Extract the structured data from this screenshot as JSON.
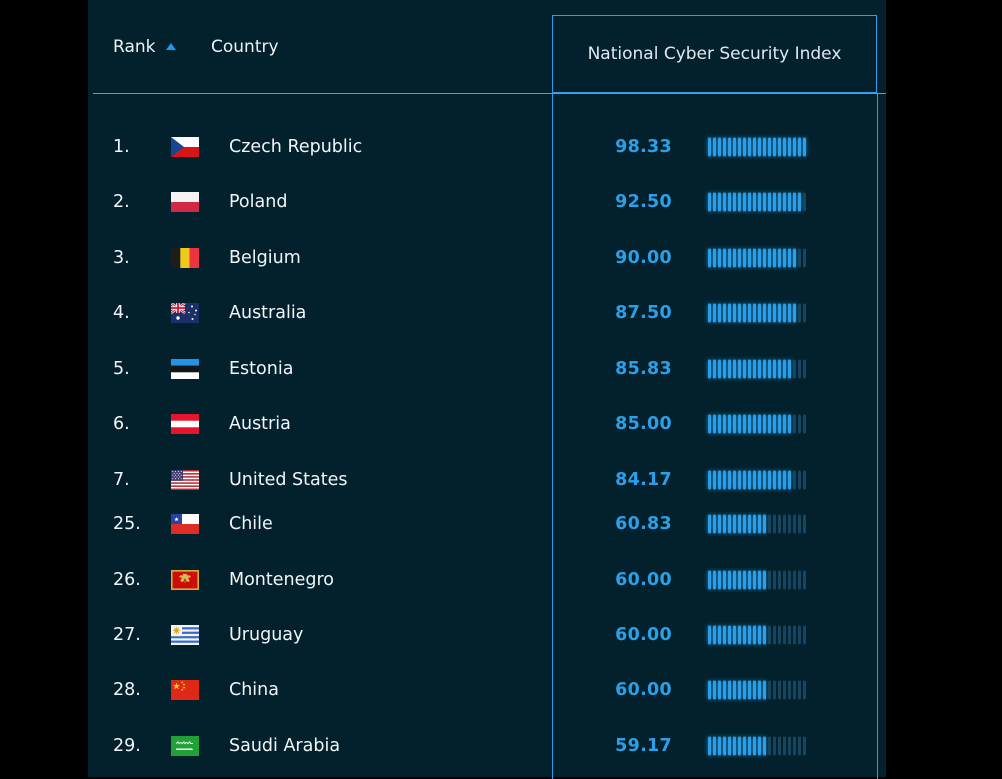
{
  "header": {
    "rank_label": "Rank",
    "country_label": "Country",
    "index_label": "National Cyber Security Index",
    "sort": {
      "column": "Rank",
      "direction": "ascending"
    }
  },
  "colors": {
    "page_bg": "#000000",
    "table_bg": "#03212c",
    "accent_blue": "#2b9fe8",
    "tick_dim": "#15465f",
    "header_line": "#4aa3d2",
    "column_border": "#2e9ce6",
    "text_primary": "#f1f5f7",
    "sort_arrow": "#2196f3"
  },
  "table": {
    "bar": {
      "total_ticks": 20,
      "max_value": 100
    },
    "rows": [
      {
        "rank": "1.",
        "country": "Czech Republic",
        "flag": "cz",
        "score": "98.33",
        "value": 98.33
      },
      {
        "rank": "2.",
        "country": "Poland",
        "flag": "pl",
        "score": "92.50",
        "value": 92.5
      },
      {
        "rank": "3.",
        "country": "Belgium",
        "flag": "be",
        "score": "90.00",
        "value": 90.0
      },
      {
        "rank": "4.",
        "country": "Australia",
        "flag": "au",
        "score": "87.50",
        "value": 87.5
      },
      {
        "rank": "5.",
        "country": "Estonia",
        "flag": "ee",
        "score": "85.83",
        "value": 85.83
      },
      {
        "rank": "6.",
        "country": "Austria",
        "flag": "at",
        "score": "85.00",
        "value": 85.0
      },
      {
        "rank": "7.",
        "country": "United States",
        "flag": "us",
        "score": "84.17",
        "value": 84.17
      },
      {
        "rank": "25.",
        "country": "Chile",
        "flag": "cl",
        "score": "60.83",
        "value": 60.83
      },
      {
        "rank": "26.",
        "country": "Montenegro",
        "flag": "me",
        "score": "60.00",
        "value": 60.0
      },
      {
        "rank": "27.",
        "country": "Uruguay",
        "flag": "uy",
        "score": "60.00",
        "value": 60.0
      },
      {
        "rank": "28.",
        "country": "China",
        "flag": "cn",
        "score": "60.00",
        "value": 60.0
      },
      {
        "rank": "29.",
        "country": "Saudi Arabia",
        "flag": "sa",
        "score": "59.17",
        "value": 59.17
      }
    ]
  }
}
